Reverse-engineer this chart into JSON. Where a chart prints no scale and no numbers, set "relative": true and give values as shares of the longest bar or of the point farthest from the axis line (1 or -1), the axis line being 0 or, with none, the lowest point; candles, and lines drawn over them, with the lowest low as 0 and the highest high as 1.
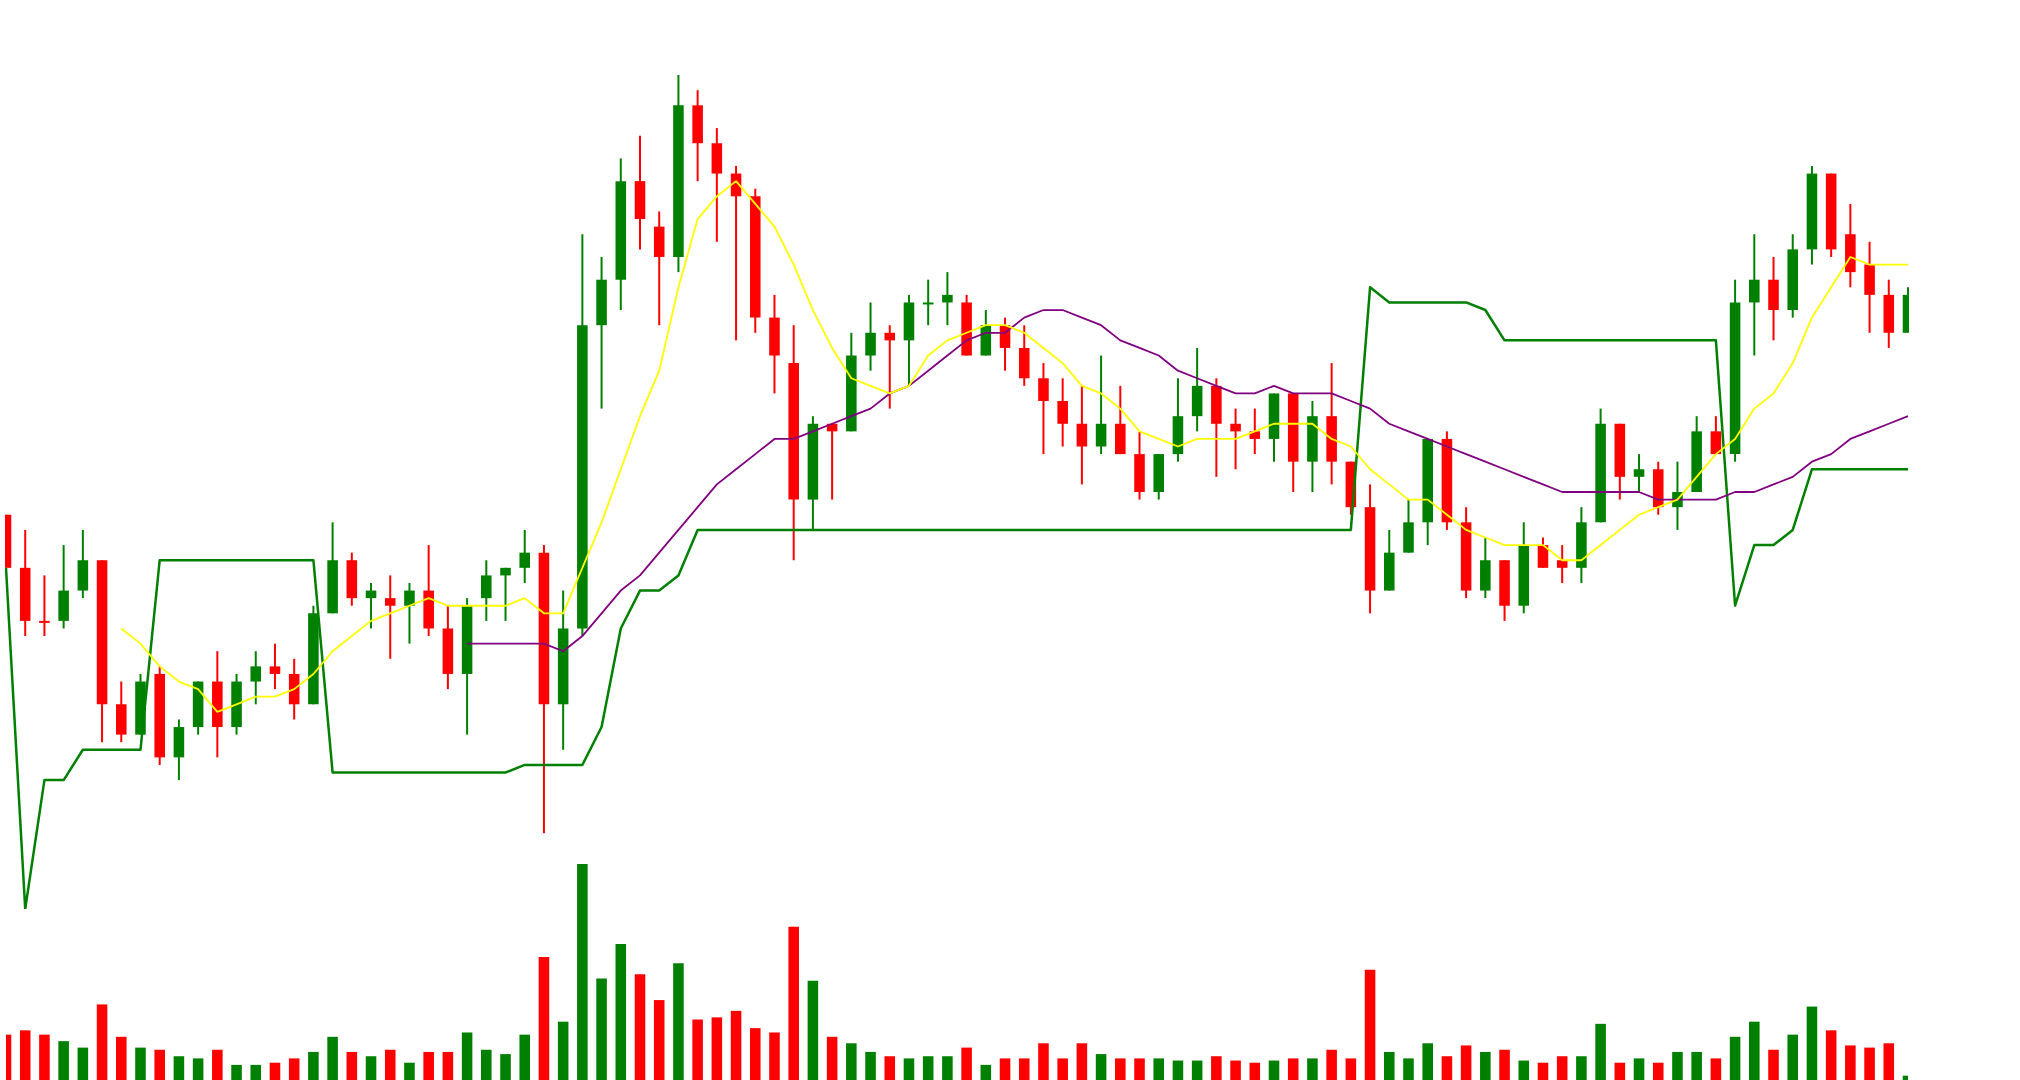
{
  "chart_data": [
    {
      "type": "candlestick",
      "relative": true,
      "categories": [
        null,
        null,
        null,
        null,
        null,
        null,
        null,
        null,
        null,
        null,
        null,
        null,
        null,
        null,
        null,
        null,
        null,
        null,
        null,
        null,
        null,
        null,
        null,
        null,
        null,
        null,
        null,
        null,
        null,
        null,
        null,
        null,
        null,
        null,
        null,
        null,
        null,
        null,
        null,
        null,
        null,
        null,
        null,
        null,
        null,
        null,
        null,
        null,
        null,
        null,
        null,
        null,
        null,
        null,
        null,
        null,
        null,
        null,
        null,
        null,
        null,
        null,
        null,
        null,
        null,
        null,
        null,
        null,
        null,
        null,
        null,
        null,
        null,
        null,
        null,
        null,
        null,
        null,
        null,
        null,
        null,
        null,
        null,
        null,
        null,
        null,
        null,
        null,
        null,
        null,
        null,
        null,
        null,
        null,
        null,
        null,
        null,
        null,
        null,
        null
      ],
      "ohlc": [
        [
          0.42,
          0.42,
          0.35,
          0.35
        ],
        [
          0.35,
          0.4,
          0.26,
          0.28
        ],
        [
          0.28,
          0.34,
          0.26,
          0.28
        ],
        [
          0.28,
          0.38,
          0.27,
          0.32
        ],
        [
          0.32,
          0.4,
          0.31,
          0.36
        ],
        [
          0.36,
          0.36,
          0.12,
          0.17
        ],
        [
          0.17,
          0.2,
          0.12,
          0.13
        ],
        [
          0.13,
          0.21,
          0.13,
          0.2
        ],
        [
          0.21,
          0.22,
          0.09,
          0.1
        ],
        [
          0.1,
          0.15,
          0.07,
          0.14
        ],
        [
          0.14,
          0.2,
          0.13,
          0.2
        ],
        [
          0.2,
          0.24,
          0.1,
          0.14
        ],
        [
          0.14,
          0.21,
          0.13,
          0.2
        ],
        [
          0.2,
          0.24,
          0.17,
          0.22
        ],
        [
          0.22,
          0.25,
          0.19,
          0.21
        ],
        [
          0.21,
          0.23,
          0.15,
          0.17
        ],
        [
          0.17,
          0.3,
          0.17,
          0.29
        ],
        [
          0.29,
          0.41,
          0.29,
          0.36
        ],
        [
          0.36,
          0.37,
          0.3,
          0.31
        ],
        [
          0.31,
          0.33,
          0.27,
          0.32
        ],
        [
          0.31,
          0.34,
          0.23,
          0.3
        ],
        [
          0.3,
          0.33,
          0.25,
          0.32
        ],
        [
          0.32,
          0.38,
          0.26,
          0.27
        ],
        [
          0.27,
          0.3,
          0.19,
          0.21
        ],
        [
          0.21,
          0.31,
          0.13,
          0.3
        ],
        [
          0.31,
          0.36,
          0.28,
          0.34
        ],
        [
          0.34,
          0.35,
          0.28,
          0.35
        ],
        [
          0.35,
          0.4,
          0.33,
          0.37
        ],
        [
          0.37,
          0.38,
          0,
          0.17
        ],
        [
          0.17,
          0.32,
          0.11,
          0.27
        ],
        [
          0.27,
          0.79,
          0.26,
          0.67
        ],
        [
          0.67,
          0.76,
          0.56,
          0.73
        ],
        [
          0.73,
          0.89,
          0.69,
          0.86
        ],
        [
          0.86,
          0.92,
          0.77,
          0.81
        ],
        [
          0.8,
          0.82,
          0.67,
          0.76
        ],
        [
          0.76,
          1,
          0.74,
          0.96
        ],
        [
          0.96,
          0.98,
          0.86,
          0.91
        ],
        [
          0.91,
          0.93,
          0.78,
          0.87
        ],
        [
          0.87,
          0.88,
          0.65,
          0.84
        ],
        [
          0.84,
          0.85,
          0.66,
          0.68
        ],
        [
          0.68,
          0.71,
          0.58,
          0.63
        ],
        [
          0.62,
          0.67,
          0.36,
          0.44
        ],
        [
          0.44,
          0.55,
          0.4,
          0.54
        ],
        [
          0.54,
          0.54,
          0.44,
          0.53
        ],
        [
          0.53,
          0.66,
          0.53,
          0.63
        ],
        [
          0.63,
          0.7,
          0.61,
          0.66
        ],
        [
          0.66,
          0.67,
          0.56,
          0.65
        ],
        [
          0.65,
          0.71,
          0.59,
          0.7
        ],
        [
          0.7,
          0.73,
          0.67,
          0.7
        ],
        [
          0.7,
          0.74,
          0.67,
          0.71
        ],
        [
          0.7,
          0.71,
          0.63,
          0.63
        ],
        [
          0.63,
          0.69,
          0.63,
          0.67
        ],
        [
          0.67,
          0.68,
          0.61,
          0.64
        ],
        [
          0.64,
          0.67,
          0.59,
          0.6
        ],
        [
          0.6,
          0.62,
          0.5,
          0.57
        ],
        [
          0.57,
          0.6,
          0.51,
          0.54
        ],
        [
          0.54,
          0.59,
          0.46,
          0.51
        ],
        [
          0.51,
          0.63,
          0.5,
          0.54
        ],
        [
          0.54,
          0.59,
          0.5,
          0.5
        ],
        [
          0.5,
          0.53,
          0.44,
          0.45
        ],
        [
          0.45,
          0.5,
          0.44,
          0.5
        ],
        [
          0.5,
          0.6,
          0.49,
          0.55
        ],
        [
          0.55,
          0.64,
          0.53,
          0.59
        ],
        [
          0.59,
          0.6,
          0.47,
          0.54
        ],
        [
          0.54,
          0.56,
          0.48,
          0.53
        ],
        [
          0.53,
          0.56,
          0.5,
          0.52
        ],
        [
          0.52,
          0.58,
          0.49,
          0.58
        ],
        [
          0.58,
          0.58,
          0.45,
          0.49
        ],
        [
          0.49,
          0.57,
          0.45,
          0.55
        ],
        [
          0.55,
          0.62,
          0.46,
          0.49
        ],
        [
          0.49,
          0.49,
          0.42,
          0.43
        ],
        [
          0.43,
          0.46,
          0.29,
          0.32
        ],
        [
          0.32,
          0.4,
          0.32,
          0.37
        ],
        [
          0.37,
          0.44,
          0.37,
          0.41
        ],
        [
          0.41,
          0.52,
          0.38,
          0.52
        ],
        [
          0.52,
          0.53,
          0.4,
          0.41
        ],
        [
          0.41,
          0.43,
          0.31,
          0.32
        ],
        [
          0.32,
          0.39,
          0.31,
          0.36
        ],
        [
          0.36,
          0.36,
          0.28,
          0.3
        ],
        [
          0.3,
          0.41,
          0.29,
          0.38
        ],
        [
          0.38,
          0.39,
          0.35,
          0.35
        ],
        [
          0.36,
          0.38,
          0.33,
          0.35
        ],
        [
          0.35,
          0.43,
          0.33,
          0.41
        ],
        [
          0.41,
          0.56,
          0.41,
          0.54
        ],
        [
          0.54,
          0.54,
          0.44,
          0.47
        ],
        [
          0.47,
          0.5,
          0.45,
          0.48
        ],
        [
          0.48,
          0.49,
          0.42,
          0.43
        ],
        [
          0.43,
          0.49,
          0.4,
          0.45
        ],
        [
          0.45,
          0.55,
          0.45,
          0.53
        ],
        [
          0.53,
          0.55,
          0.5,
          0.5
        ],
        [
          0.5,
          0.73,
          0.49,
          0.7
        ],
        [
          0.7,
          0.79,
          0.63,
          0.73
        ],
        [
          0.73,
          0.76,
          0.65,
          0.69
        ],
        [
          0.69,
          0.79,
          0.68,
          0.77
        ],
        [
          0.77,
          0.88,
          0.75,
          0.87
        ],
        [
          0.87,
          0.87,
          0.76,
          0.77
        ],
        [
          0.79,
          0.83,
          0.72,
          0.74
        ],
        [
          0.75,
          0.78,
          0.66,
          0.71
        ],
        [
          0.71,
          0.73,
          0.64,
          0.66
        ],
        [
          0.66,
          0.72,
          0.66,
          0.71
        ]
      ],
      "colors": [
        "#ff0000",
        "#ff0000",
        "#ff0000",
        "#008000",
        "#008000",
        "#ff0000",
        "#ff0000",
        "#008000",
        "#ff0000",
        "#008000",
        "#008000",
        "#ff0000",
        "#008000",
        "#008000",
        "#ff0000",
        "#ff0000",
        "#008000",
        "#008000",
        "#ff0000",
        "#008000",
        "#ff0000",
        "#008000",
        "#ff0000",
        "#ff0000",
        "#008000",
        "#008000",
        "#008000",
        "#008000",
        "#ff0000",
        "#008000",
        "#008000",
        "#008000",
        "#008000",
        "#ff0000",
        "#ff0000",
        "#008000",
        "#ff0000",
        "#ff0000",
        "#ff0000",
        "#ff0000",
        "#ff0000",
        "#ff0000",
        "#008000",
        "#ff0000",
        "#008000",
        "#008000",
        "#ff0000",
        "#008000",
        "#008000",
        "#008000",
        "#ff0000",
        "#008000",
        "#ff0000",
        "#ff0000",
        "#ff0000",
        "#ff0000",
        "#ff0000",
        "#008000",
        "#ff0000",
        "#ff0000",
        "#008000",
        "#008000",
        "#008000",
        "#ff0000",
        "#ff0000",
        "#ff0000",
        "#008000",
        "#ff0000",
        "#008000",
        "#ff0000",
        "#ff0000",
        "#ff0000",
        "#008000",
        "#008000",
        "#008000",
        "#ff0000",
        "#ff0000",
        "#008000",
        "#ff0000",
        "#008000",
        "#ff0000",
        "#ff0000",
        "#008000",
        "#008000",
        "#ff0000",
        "#008000",
        "#ff0000",
        "#008000",
        "#008000",
        "#ff0000",
        "#008000",
        "#008000",
        "#ff0000",
        "#008000",
        "#008000",
        "#ff0000",
        "#ff0000",
        "#ff0000",
        "#ff0000",
        "#008000"
      ],
      "series": [
        {
          "type": "line",
          "color": "#ffff00",
          "values": [
            null,
            null,
            null,
            null,
            null,
            null,
            0.27,
            0.25,
            0.22,
            0.2,
            0.19,
            0.16,
            0.17,
            0.18,
            0.18,
            0.19,
            0.21,
            0.24,
            0.26,
            0.28,
            0.29,
            0.3,
            0.31,
            0.3,
            0.3,
            0.3,
            0.3,
            0.31,
            0.29,
            0.29,
            0.35,
            0.41,
            0.48,
            0.55,
            0.61,
            0.72,
            0.81,
            0.84,
            0.86,
            0.83,
            0.8,
            0.75,
            0.69,
            0.64,
            0.6,
            0.59,
            0.58,
            0.59,
            0.63,
            0.65,
            0.66,
            0.67,
            0.67,
            0.66,
            0.64,
            0.62,
            0.59,
            0.58,
            0.56,
            0.53,
            0.52,
            0.51,
            0.52,
            0.52,
            0.52,
            0.53,
            0.54,
            0.54,
            0.54,
            0.52,
            0.51,
            0.48,
            0.46,
            0.44,
            0.44,
            0.42,
            0.4,
            0.39,
            0.38,
            0.38,
            0.38,
            0.36,
            0.36,
            0.38,
            0.4,
            0.42,
            0.43,
            0.44,
            0.47,
            0.5,
            0.52,
            0.56,
            0.58,
            0.62,
            0.68,
            0.72,
            0.76,
            0.75,
            0.75,
            0.75
          ]
        },
        {
          "type": "line",
          "color": "#800080",
          "values": [
            null,
            null,
            null,
            null,
            null,
            null,
            null,
            null,
            null,
            null,
            null,
            null,
            null,
            null,
            null,
            null,
            null,
            null,
            null,
            null,
            null,
            null,
            null,
            null,
            0.25,
            0.25,
            0.25,
            0.25,
            0.25,
            0.24,
            0.26,
            0.29,
            0.32,
            0.34,
            0.37,
            0.4,
            0.43,
            0.46,
            0.48,
            0.5,
            0.52,
            0.52,
            0.53,
            0.54,
            0.55,
            0.56,
            0.58,
            0.59,
            0.61,
            0.63,
            0.65,
            0.66,
            0.66,
            0.68,
            0.69,
            0.69,
            0.68,
            0.67,
            0.65,
            0.64,
            0.63,
            0.61,
            0.6,
            0.59,
            0.58,
            0.58,
            0.59,
            0.58,
            0.58,
            0.58,
            0.57,
            0.56,
            0.54,
            0.53,
            0.52,
            0.51,
            0.5,
            0.49,
            0.48,
            0.47,
            0.46,
            0.45,
            0.45,
            0.45,
            0.45,
            0.45,
            0.44,
            0.44,
            0.44,
            0.44,
            0.45,
            0.45,
            0.46,
            0.47,
            0.49,
            0.5,
            0.52,
            0.53,
            0.54,
            0.55
          ]
        },
        {
          "type": "line",
          "color": "#008000",
          "values": [
            0.35,
            -0.1,
            0.07,
            0.07,
            0.11,
            0.11,
            0.11,
            0.11,
            0.36,
            0.36,
            0.36,
            0.36,
            0.36,
            0.36,
            0.36,
            0.36,
            0.36,
            0.08,
            0.08,
            0.08,
            0.08,
            0.08,
            0.08,
            0.08,
            0.08,
            0.08,
            0.08,
            0.09,
            0.09,
            0.09,
            0.09,
            0.14,
            0.27,
            0.32,
            0.32,
            0.34,
            0.4,
            0.4,
            0.4,
            0.4,
            0.4,
            0.4,
            0.4,
            0.4,
            0.4,
            0.4,
            0.4,
            0.4,
            0.4,
            0.4,
            0.4,
            0.4,
            0.4,
            0.4,
            0.4,
            0.4,
            0.4,
            0.4,
            0.4,
            0.4,
            0.4,
            0.4,
            0.4,
            0.4,
            0.4,
            0.4,
            0.4,
            0.4,
            0.4,
            0.4,
            0.4,
            0.72,
            0.7,
            0.7,
            0.7,
            0.7,
            0.7,
            0.69,
            0.65,
            0.65,
            0.65,
            0.65,
            0.65,
            0.65,
            0.65,
            0.65,
            0.65,
            0.65,
            0.65,
            0.65,
            0.3,
            0.38,
            0.38,
            0.4,
            0.48,
            0.48,
            0.48,
            0.48,
            0.48,
            0.48
          ]
        }
      ]
    },
    {
      "type": "bar",
      "relative": true,
      "categories": [
        null,
        null,
        null,
        null,
        null,
        null,
        null,
        null,
        null,
        null,
        null,
        null,
        null,
        null,
        null,
        null,
        null,
        null,
        null,
        null,
        null,
        null,
        null,
        null,
        null,
        null,
        null,
        null,
        null,
        null,
        null,
        null,
        null,
        null,
        null,
        null,
        null,
        null,
        null,
        null,
        null,
        null,
        null,
        null,
        null,
        null,
        null,
        null,
        null,
        null,
        null,
        null,
        null,
        null,
        null,
        null,
        null,
        null,
        null,
        null,
        null,
        null,
        null,
        null,
        null,
        null,
        null,
        null,
        null,
        null,
        null,
        null,
        null,
        null,
        null,
        null,
        null,
        null,
        null,
        null,
        null,
        null,
        null,
        null,
        null,
        null,
        null,
        null,
        null,
        null,
        null,
        null,
        null,
        null,
        null,
        null,
        null,
        null,
        null,
        null
      ],
      "values": [
        0.21,
        0.23,
        0.21,
        0.18,
        0.15,
        0.35,
        0.2,
        0.15,
        0.14,
        0.11,
        0.1,
        0.14,
        0.07,
        0.07,
        0.08,
        0.1,
        0.13,
        0.2,
        0.13,
        0.11,
        0.14,
        0.08,
        0.13,
        0.13,
        0.22,
        0.14,
        0.12,
        0.21,
        0.57,
        0.27,
        1,
        0.47,
        0.63,
        0.49,
        0.37,
        0.54,
        0.28,
        0.29,
        0.32,
        0.24,
        0.22,
        0.71,
        0.46,
        0.2,
        0.17,
        0.13,
        0.11,
        0.1,
        0.11,
        0.11,
        0.15,
        0.07,
        0.1,
        0.1,
        0.17,
        0.1,
        0.17,
        0.12,
        0.1,
        0.1,
        0.1,
        0.09,
        0.09,
        0.11,
        0.09,
        0.08,
        0.09,
        0.1,
        0.1,
        0.14,
        0.1,
        0.51,
        0.13,
        0.1,
        0.17,
        0.11,
        0.16,
        0.13,
        0.14,
        0.09,
        0.08,
        0.11,
        0.11,
        0.26,
        0.08,
        0.1,
        0.08,
        0.13,
        0.13,
        0.1,
        0.2,
        0.27,
        0.14,
        0.21,
        0.34,
        0.23,
        0.16,
        0.15,
        0.17,
        0.02
      ],
      "colors": [
        "#ff0000",
        "#ff0000",
        "#ff0000",
        "#008000",
        "#008000",
        "#ff0000",
        "#ff0000",
        "#008000",
        "#ff0000",
        "#008000",
        "#008000",
        "#ff0000",
        "#008000",
        "#008000",
        "#ff0000",
        "#ff0000",
        "#008000",
        "#008000",
        "#ff0000",
        "#008000",
        "#ff0000",
        "#008000",
        "#ff0000",
        "#ff0000",
        "#008000",
        "#008000",
        "#008000",
        "#008000",
        "#ff0000",
        "#008000",
        "#008000",
        "#008000",
        "#008000",
        "#ff0000",
        "#ff0000",
        "#008000",
        "#ff0000",
        "#ff0000",
        "#ff0000",
        "#ff0000",
        "#ff0000",
        "#ff0000",
        "#008000",
        "#ff0000",
        "#008000",
        "#008000",
        "#ff0000",
        "#008000",
        "#008000",
        "#008000",
        "#ff0000",
        "#008000",
        "#ff0000",
        "#ff0000",
        "#ff0000",
        "#ff0000",
        "#ff0000",
        "#008000",
        "#ff0000",
        "#ff0000",
        "#008000",
        "#008000",
        "#008000",
        "#ff0000",
        "#ff0000",
        "#ff0000",
        "#008000",
        "#ff0000",
        "#008000",
        "#ff0000",
        "#ff0000",
        "#ff0000",
        "#008000",
        "#008000",
        "#008000",
        "#ff0000",
        "#ff0000",
        "#008000",
        "#ff0000",
        "#008000",
        "#ff0000",
        "#ff0000",
        "#008000",
        "#008000",
        "#ff0000",
        "#008000",
        "#ff0000",
        "#008000",
        "#008000",
        "#ff0000",
        "#008000",
        "#008000",
        "#ff0000",
        "#008000",
        "#008000",
        "#ff0000",
        "#ff0000",
        "#ff0000",
        "#ff0000",
        "#008000"
      ]
    }
  ]
}
